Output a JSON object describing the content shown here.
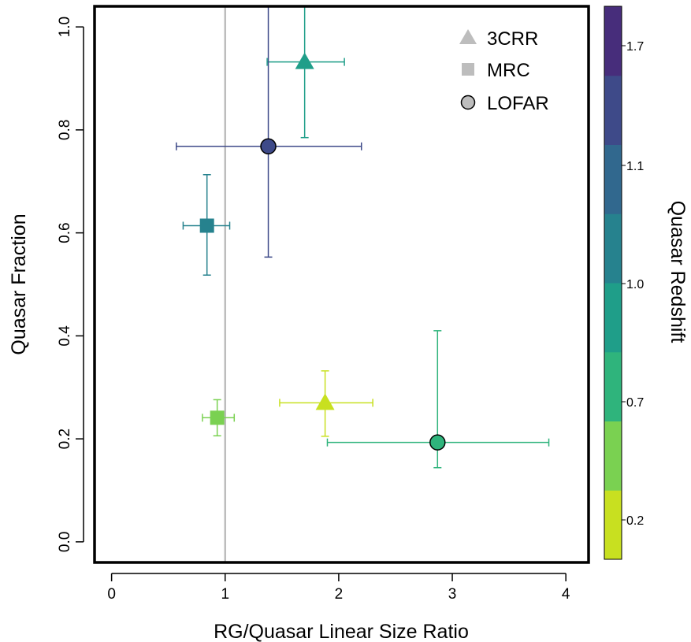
{
  "chart_data": {
    "type": "scatter",
    "title": "",
    "xlabel": "RG/Quasar Linear Size Ratio",
    "ylabel": "Quasar Fraction",
    "xlim": [
      -0.15,
      4.2
    ],
    "ylim": [
      -0.04,
      1.04
    ],
    "x_ticks": [
      0,
      1,
      2,
      3,
      4
    ],
    "y_ticks": [
      0.0,
      0.2,
      0.4,
      0.6,
      0.8,
      1.0
    ],
    "x_tick_labels": [
      "0",
      "1",
      "2",
      "3",
      "4"
    ],
    "y_tick_labels": [
      "0.0",
      "0.2",
      "0.4",
      "0.6",
      "0.8",
      "1.0"
    ],
    "reference_line_x": 1,
    "reference_line_color": "#bdbdbd",
    "grid": false,
    "legend": {
      "position": "top-right",
      "entries": [
        {
          "label": "3CRR",
          "marker": "triangle"
        },
        {
          "label": "MRC",
          "marker": "square"
        },
        {
          "label": "LOFAR",
          "marker": "circle"
        }
      ],
      "color": "#bdbdbd"
    },
    "colorbar": {
      "label": "Quasar Redshift",
      "tick_labels": [
        "0.2",
        "0.7",
        "1.0",
        "1.1",
        "1.7"
      ],
      "colors": [
        "#c8e020",
        "#7ad151",
        "#2fb47c",
        "#1f9e89",
        "#26828e",
        "#31688e",
        "#3e4a89",
        "#472d7b"
      ]
    },
    "points": [
      {
        "sample": "3CRR",
        "marker": "triangle",
        "x": 1.7,
        "y": 0.932,
        "x_err": [
          1.37,
          2.05
        ],
        "y_err": [
          0.785,
          1.04
        ],
        "color": "#1f9e89"
      },
      {
        "sample": "LOFAR",
        "marker": "circle",
        "x": 1.38,
        "y": 0.768,
        "x_err": [
          0.57,
          2.2
        ],
        "y_err": [
          0.553,
          1.04
        ],
        "color": "#3e4a89"
      },
      {
        "sample": "MRC",
        "marker": "square",
        "x": 0.84,
        "y": 0.614,
        "x_err": [
          0.63,
          1.04
        ],
        "y_err": [
          0.518,
          0.713
        ],
        "color": "#26828e"
      },
      {
        "sample": "3CRR",
        "marker": "triangle",
        "x": 1.88,
        "y": 0.27,
        "x_err": [
          1.48,
          2.3
        ],
        "y_err": [
          0.205,
          0.332
        ],
        "color": "#c8e020"
      },
      {
        "sample": "MRC",
        "marker": "square",
        "x": 0.93,
        "y": 0.241,
        "x_err": [
          0.8,
          1.08
        ],
        "y_err": [
          0.206,
          0.276
        ],
        "color": "#7ad151"
      },
      {
        "sample": "LOFAR",
        "marker": "circle",
        "x": 2.87,
        "y": 0.193,
        "x_err": [
          1.9,
          3.85
        ],
        "y_err": [
          0.144,
          0.41
        ],
        "color": "#2fb47c"
      }
    ]
  }
}
